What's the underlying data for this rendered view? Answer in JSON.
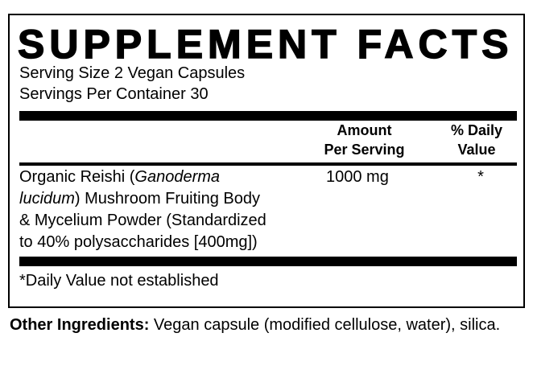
{
  "title": "SUPPLEMENT FACTS",
  "serving_size": "Serving Size 2 Vegan Capsules",
  "servings_per_container": "Servings Per Container 30",
  "headers": {
    "amount_line1": "Amount",
    "amount_line2": "Per Serving",
    "dv_line1": "% Daily",
    "dv_line2": "Value"
  },
  "ingredients": [
    {
      "name_prefix": "Organic Reishi (",
      "name_italic_1": "Ganoderma",
      "name_italic_2": "lucidum",
      "name_suffix_1": ") Mushroom Fruiting Body",
      "name_line3": "& Mycelium Powder (Standardized",
      "name_line4": "to 40% polysaccharides [400mg])",
      "amount": "1000 mg",
      "daily_value": "*"
    }
  ],
  "footnote": "*Daily Value not established",
  "other_ingredients": {
    "label": "Other Ingredients:",
    "text": " Vegan capsule (modified cellulose, water), silica."
  }
}
